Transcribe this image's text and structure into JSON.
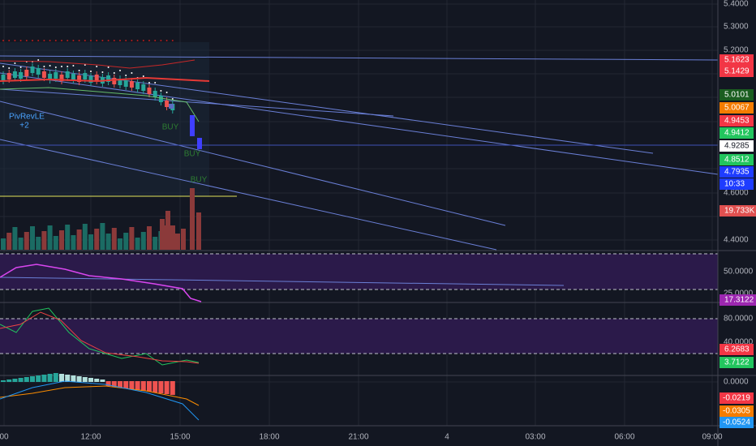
{
  "price_axis": {
    "ticks": [
      "5.4000",
      "5.3000",
      "5.2000",
      "4.6000",
      "4.4000"
    ]
  },
  "price_badges": [
    "5.1623",
    "5.1429",
    "5.0101",
    "5.0067",
    "4.9453",
    "4.9412",
    "4.9285",
    "4.8512",
    "4.7935",
    "10:33"
  ],
  "volume_badge": "19.733K",
  "rsi_axis": {
    "ticks": [
      "50.0000",
      "25.0000"
    ],
    "badge": "17.3122"
  },
  "stoch_axis": {
    "ticks": [
      "80.0000",
      "40.0000"
    ],
    "badges": [
      "6.2683",
      "3.7122"
    ]
  },
  "macd_axis": {
    "ticks": [
      "0.0000"
    ],
    "badges": [
      "-0.0219",
      "-0.0305",
      "-0.0524"
    ]
  },
  "time_axis": {
    "labels": [
      "00",
      "12:00",
      "15:00",
      "18:00",
      "21:00",
      "4",
      "03:00",
      "06:00",
      "09:00"
    ]
  },
  "annotations": {
    "pivot": "PivRevLE",
    "pivot_count": "+2",
    "buy": [
      "BUY",
      "BUY",
      "BUY"
    ]
  }
}
